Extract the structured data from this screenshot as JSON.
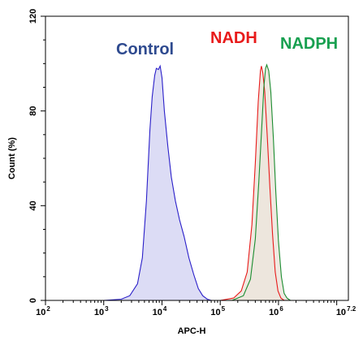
{
  "chart_data": {
    "type": "area",
    "xscale": "log",
    "xlabel": "APC-H",
    "ylabel": "Count  (%)",
    "xlim": [
      100,
      15848932
    ],
    "ylim": [
      0,
      120
    ],
    "x_ticks": [
      {
        "value": 100,
        "base": "10",
        "exp": "2"
      },
      {
        "value": 1000,
        "base": "10",
        "exp": "3"
      },
      {
        "value": 10000,
        "base": "10",
        "exp": "4"
      },
      {
        "value": 100000,
        "base": "10",
        "exp": "5"
      },
      {
        "value": 1000000,
        "base": "10",
        "exp": "6"
      },
      {
        "value": 15848932,
        "base": "10",
        "exp": "7.2"
      }
    ],
    "y_ticks": [
      0,
      40,
      80,
      120
    ],
    "series": [
      {
        "name": "Control",
        "color": "#2a1fc9",
        "fill": "#dcdcf5",
        "label_color": "#2e4a8f",
        "points": [
          [
            1000,
            0
          ],
          [
            2000,
            0.5
          ],
          [
            2800,
            2
          ],
          [
            3800,
            7
          ],
          [
            4600,
            18
          ],
          [
            5400,
            42
          ],
          [
            6200,
            72
          ],
          [
            6800,
            86
          ],
          [
            7500,
            95
          ],
          [
            8000,
            98
          ],
          [
            8700,
            97.5
          ],
          [
            9300,
            99
          ],
          [
            10000,
            94
          ],
          [
            11000,
            80
          ],
          [
            12600,
            65
          ],
          [
            14500,
            52
          ],
          [
            17000,
            42
          ],
          [
            20000,
            34
          ],
          [
            24000,
            27
          ],
          [
            29000,
            18
          ],
          [
            35000,
            11
          ],
          [
            42000,
            5
          ],
          [
            50000,
            2
          ],
          [
            60000,
            0.5
          ],
          [
            70000,
            0
          ]
        ]
      },
      {
        "name": "NADH",
        "color": "#e81a1a",
        "fill": "#ece5dc",
        "label_color": "#e81a1a",
        "points": [
          [
            100000,
            0
          ],
          [
            170000,
            1
          ],
          [
            230000,
            4
          ],
          [
            290000,
            12
          ],
          [
            350000,
            32
          ],
          [
            400000,
            58
          ],
          [
            450000,
            84
          ],
          [
            490000,
            97
          ],
          [
            510000,
            99
          ],
          [
            540000,
            96
          ],
          [
            580000,
            88
          ],
          [
            640000,
            70
          ],
          [
            710000,
            48
          ],
          [
            790000,
            28
          ],
          [
            880000,
            12
          ],
          [
            980000,
            4
          ],
          [
            1100000,
            1
          ],
          [
            1250000,
            0
          ]
        ]
      },
      {
        "name": "NADPH",
        "color": "#1a8c2f",
        "fill": "#ece5dc",
        "label_color": "#18a050",
        "points": [
          [
            160000,
            0
          ],
          [
            250000,
            2
          ],
          [
            330000,
            9
          ],
          [
            400000,
            26
          ],
          [
            460000,
            50
          ],
          [
            520000,
            75
          ],
          [
            560000,
            90
          ],
          [
            600000,
            98
          ],
          [
            630000,
            99.5
          ],
          [
            680000,
            97
          ],
          [
            740000,
            88
          ],
          [
            820000,
            68
          ],
          [
            900000,
            46
          ],
          [
            1000000,
            25
          ],
          [
            1120000,
            10
          ],
          [
            1250000,
            3
          ],
          [
            1400000,
            1
          ],
          [
            1600000,
            0
          ]
        ]
      }
    ]
  }
}
